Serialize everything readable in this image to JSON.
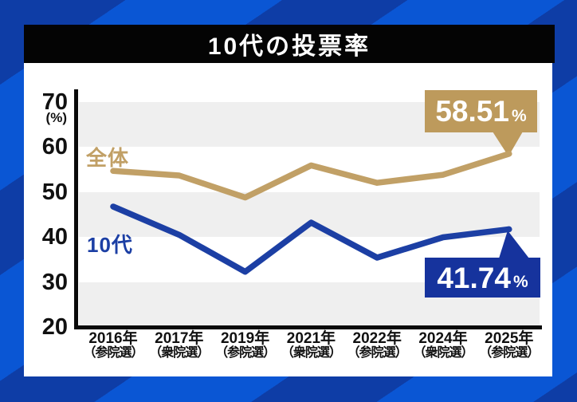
{
  "title": "10代の投票率",
  "colors": {
    "bg_bright": "#0a56d4",
    "bg_dark": "#0e3da6",
    "band_gray": "#efefef",
    "overall_line": "#c1a066",
    "teens_line": "#1c3fa4",
    "callout_overall_bg": "#bd9a5c",
    "callout_teens_bg": "#16339d"
  },
  "callouts": {
    "overall": {
      "value": "58.51",
      "unit": "%"
    },
    "teens": {
      "value": "41.74",
      "unit": "%"
    }
  },
  "chart_data": {
    "type": "line",
    "title": "10代の投票率",
    "ylabel": "(%)",
    "ylim": [
      20,
      70
    ],
    "y_ticks": [
      70,
      60,
      50,
      40,
      30,
      20
    ],
    "grid": "alternating-gray-bands",
    "legend_position": "inline-series-labels",
    "x_labels": [
      {
        "year": "2016年",
        "election": "（参院選）"
      },
      {
        "year": "2017年",
        "election": "（衆院選）"
      },
      {
        "year": "2019年",
        "election": "（参院選）"
      },
      {
        "year": "2021年",
        "election": "（衆院選）"
      },
      {
        "year": "2022年",
        "election": "（参院選）"
      },
      {
        "year": "2024年",
        "election": "（衆院選）"
      },
      {
        "year": "2025年",
        "election": "（参院選）"
      }
    ],
    "categories": [
      "2016年（参院選）",
      "2017年（衆院選）",
      "2019年（参院選）",
      "2021年（衆院選）",
      "2022年（参院選）",
      "2024年（衆院選）",
      "2025年（参院選）"
    ],
    "series": [
      {
        "name": "全体",
        "color": "#c1a066",
        "values": [
          54.7,
          53.68,
          48.8,
          55.93,
          52.05,
          53.85,
          58.51
        ]
      },
      {
        "name": "10代",
        "color": "#1c3fa4",
        "values": [
          46.78,
          40.49,
          32.28,
          43.21,
          35.42,
          39.94,
          41.74
        ]
      }
    ],
    "annotations": [
      {
        "series": "全体",
        "x": "2025年（参院選）",
        "label": "58.51%"
      },
      {
        "series": "10代",
        "x": "2025年（参院選）",
        "label": "41.74%"
      }
    ]
  }
}
